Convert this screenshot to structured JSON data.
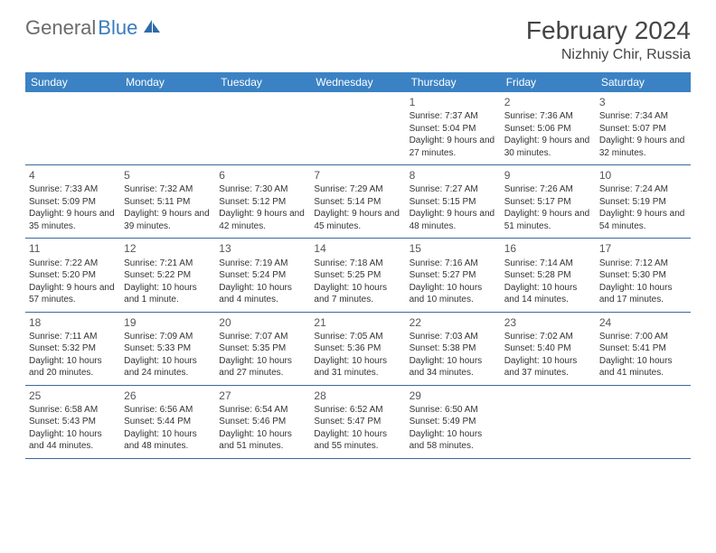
{
  "logo": {
    "text_gray": "General",
    "text_blue": "Blue"
  },
  "header": {
    "month_title": "February 2024",
    "location": "Nizhniy Chir, Russia"
  },
  "colors": {
    "header_bg": "#3b82c4",
    "header_text": "#ffffff",
    "border": "#3b6a9a",
    "logo_gray": "#6b6b6b",
    "logo_blue": "#3b7cbf",
    "text": "#333333"
  },
  "weekdays": [
    "Sunday",
    "Monday",
    "Tuesday",
    "Wednesday",
    "Thursday",
    "Friday",
    "Saturday"
  ],
  "weeks": [
    [
      null,
      null,
      null,
      null,
      {
        "n": "1",
        "sunrise": "Sunrise: 7:37 AM",
        "sunset": "Sunset: 5:04 PM",
        "daylight": "Daylight: 9 hours and 27 minutes."
      },
      {
        "n": "2",
        "sunrise": "Sunrise: 7:36 AM",
        "sunset": "Sunset: 5:06 PM",
        "daylight": "Daylight: 9 hours and 30 minutes."
      },
      {
        "n": "3",
        "sunrise": "Sunrise: 7:34 AM",
        "sunset": "Sunset: 5:07 PM",
        "daylight": "Daylight: 9 hours and 32 minutes."
      }
    ],
    [
      {
        "n": "4",
        "sunrise": "Sunrise: 7:33 AM",
        "sunset": "Sunset: 5:09 PM",
        "daylight": "Daylight: 9 hours and 35 minutes."
      },
      {
        "n": "5",
        "sunrise": "Sunrise: 7:32 AM",
        "sunset": "Sunset: 5:11 PM",
        "daylight": "Daylight: 9 hours and 39 minutes."
      },
      {
        "n": "6",
        "sunrise": "Sunrise: 7:30 AM",
        "sunset": "Sunset: 5:12 PM",
        "daylight": "Daylight: 9 hours and 42 minutes."
      },
      {
        "n": "7",
        "sunrise": "Sunrise: 7:29 AM",
        "sunset": "Sunset: 5:14 PM",
        "daylight": "Daylight: 9 hours and 45 minutes."
      },
      {
        "n": "8",
        "sunrise": "Sunrise: 7:27 AM",
        "sunset": "Sunset: 5:15 PM",
        "daylight": "Daylight: 9 hours and 48 minutes."
      },
      {
        "n": "9",
        "sunrise": "Sunrise: 7:26 AM",
        "sunset": "Sunset: 5:17 PM",
        "daylight": "Daylight: 9 hours and 51 minutes."
      },
      {
        "n": "10",
        "sunrise": "Sunrise: 7:24 AM",
        "sunset": "Sunset: 5:19 PM",
        "daylight": "Daylight: 9 hours and 54 minutes."
      }
    ],
    [
      {
        "n": "11",
        "sunrise": "Sunrise: 7:22 AM",
        "sunset": "Sunset: 5:20 PM",
        "daylight": "Daylight: 9 hours and 57 minutes."
      },
      {
        "n": "12",
        "sunrise": "Sunrise: 7:21 AM",
        "sunset": "Sunset: 5:22 PM",
        "daylight": "Daylight: 10 hours and 1 minute."
      },
      {
        "n": "13",
        "sunrise": "Sunrise: 7:19 AM",
        "sunset": "Sunset: 5:24 PM",
        "daylight": "Daylight: 10 hours and 4 minutes."
      },
      {
        "n": "14",
        "sunrise": "Sunrise: 7:18 AM",
        "sunset": "Sunset: 5:25 PM",
        "daylight": "Daylight: 10 hours and 7 minutes."
      },
      {
        "n": "15",
        "sunrise": "Sunrise: 7:16 AM",
        "sunset": "Sunset: 5:27 PM",
        "daylight": "Daylight: 10 hours and 10 minutes."
      },
      {
        "n": "16",
        "sunrise": "Sunrise: 7:14 AM",
        "sunset": "Sunset: 5:28 PM",
        "daylight": "Daylight: 10 hours and 14 minutes."
      },
      {
        "n": "17",
        "sunrise": "Sunrise: 7:12 AM",
        "sunset": "Sunset: 5:30 PM",
        "daylight": "Daylight: 10 hours and 17 minutes."
      }
    ],
    [
      {
        "n": "18",
        "sunrise": "Sunrise: 7:11 AM",
        "sunset": "Sunset: 5:32 PM",
        "daylight": "Daylight: 10 hours and 20 minutes."
      },
      {
        "n": "19",
        "sunrise": "Sunrise: 7:09 AM",
        "sunset": "Sunset: 5:33 PM",
        "daylight": "Daylight: 10 hours and 24 minutes."
      },
      {
        "n": "20",
        "sunrise": "Sunrise: 7:07 AM",
        "sunset": "Sunset: 5:35 PM",
        "daylight": "Daylight: 10 hours and 27 minutes."
      },
      {
        "n": "21",
        "sunrise": "Sunrise: 7:05 AM",
        "sunset": "Sunset: 5:36 PM",
        "daylight": "Daylight: 10 hours and 31 minutes."
      },
      {
        "n": "22",
        "sunrise": "Sunrise: 7:03 AM",
        "sunset": "Sunset: 5:38 PM",
        "daylight": "Daylight: 10 hours and 34 minutes."
      },
      {
        "n": "23",
        "sunrise": "Sunrise: 7:02 AM",
        "sunset": "Sunset: 5:40 PM",
        "daylight": "Daylight: 10 hours and 37 minutes."
      },
      {
        "n": "24",
        "sunrise": "Sunrise: 7:00 AM",
        "sunset": "Sunset: 5:41 PM",
        "daylight": "Daylight: 10 hours and 41 minutes."
      }
    ],
    [
      {
        "n": "25",
        "sunrise": "Sunrise: 6:58 AM",
        "sunset": "Sunset: 5:43 PM",
        "daylight": "Daylight: 10 hours and 44 minutes."
      },
      {
        "n": "26",
        "sunrise": "Sunrise: 6:56 AM",
        "sunset": "Sunset: 5:44 PM",
        "daylight": "Daylight: 10 hours and 48 minutes."
      },
      {
        "n": "27",
        "sunrise": "Sunrise: 6:54 AM",
        "sunset": "Sunset: 5:46 PM",
        "daylight": "Daylight: 10 hours and 51 minutes."
      },
      {
        "n": "28",
        "sunrise": "Sunrise: 6:52 AM",
        "sunset": "Sunset: 5:47 PM",
        "daylight": "Daylight: 10 hours and 55 minutes."
      },
      {
        "n": "29",
        "sunrise": "Sunrise: 6:50 AM",
        "sunset": "Sunset: 5:49 PM",
        "daylight": "Daylight: 10 hours and 58 minutes."
      },
      null,
      null
    ]
  ]
}
